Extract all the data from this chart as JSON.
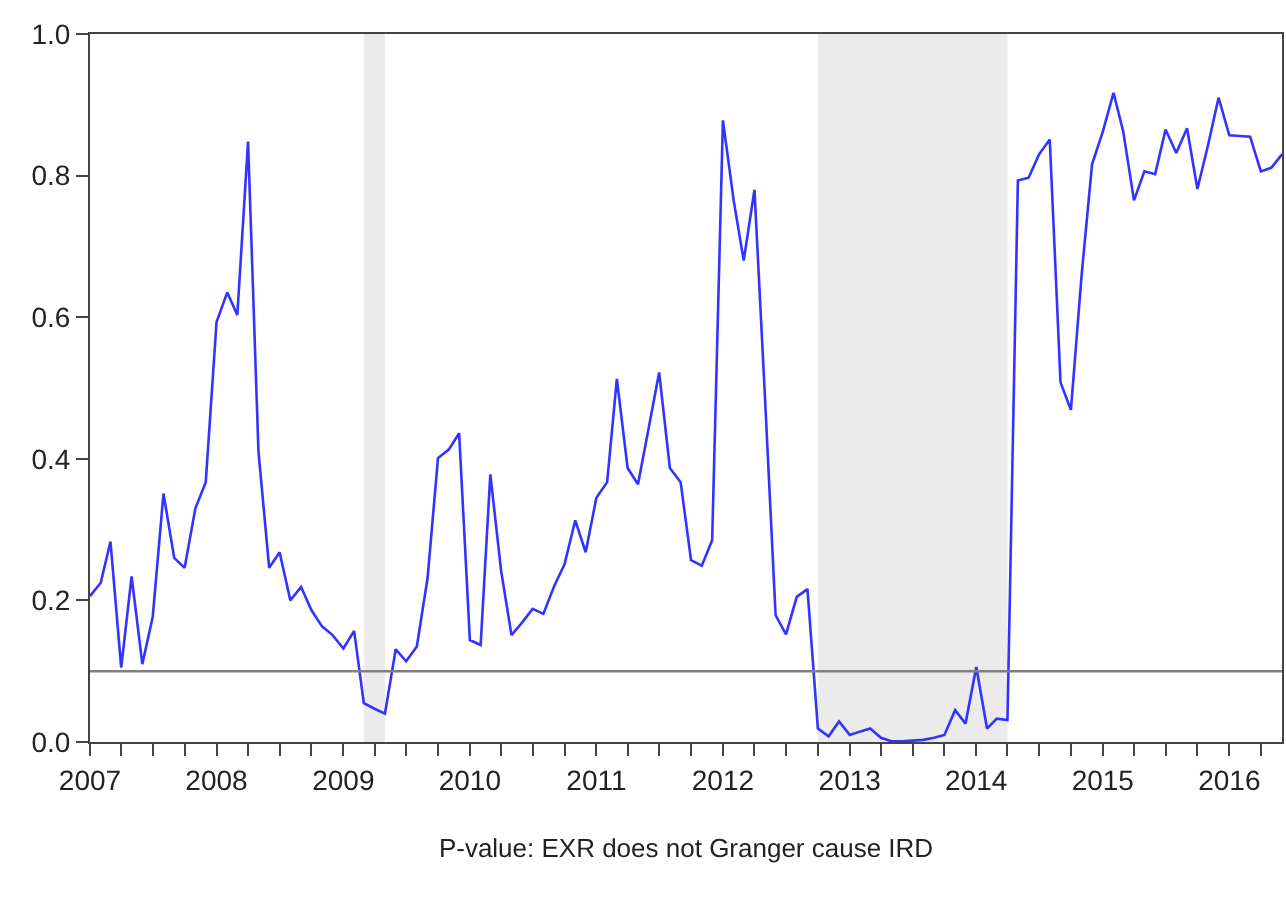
{
  "chart_data": {
    "type": "line",
    "xlabel": "P-value: EXR does not Granger cause IRD",
    "x": [
      "2007-01",
      "2007-02",
      "2007-03",
      "2007-04",
      "2007-05",
      "2007-06",
      "2007-07",
      "2007-08",
      "2007-09",
      "2007-10",
      "2007-11",
      "2007-12",
      "2008-01",
      "2008-02",
      "2008-03",
      "2008-04",
      "2008-05",
      "2008-06",
      "2008-07",
      "2008-08",
      "2008-09",
      "2008-10",
      "2008-11",
      "2008-12",
      "2009-01",
      "2009-02",
      "2009-03",
      "2009-04",
      "2009-05",
      "2009-06",
      "2009-07",
      "2009-08",
      "2009-09",
      "2009-10",
      "2009-11",
      "2009-12",
      "2010-01",
      "2010-02",
      "2010-03",
      "2010-04",
      "2010-05",
      "2010-06",
      "2010-07",
      "2010-08",
      "2010-09",
      "2010-10",
      "2010-11",
      "2010-12",
      "2011-01",
      "2011-02",
      "2011-03",
      "2011-04",
      "2011-05",
      "2011-06",
      "2011-07",
      "2011-08",
      "2011-09",
      "2011-10",
      "2011-11",
      "2011-12",
      "2012-01",
      "2012-02",
      "2012-03",
      "2012-04",
      "2012-05",
      "2012-06",
      "2012-07",
      "2012-08",
      "2012-09",
      "2012-10",
      "2012-11",
      "2012-12",
      "2013-01",
      "2013-02",
      "2013-03",
      "2013-04",
      "2013-05",
      "2013-06",
      "2013-07",
      "2013-08",
      "2013-09",
      "2013-10",
      "2013-11",
      "2013-12",
      "2014-01",
      "2014-02",
      "2014-03",
      "2014-04",
      "2014-05",
      "2014-06",
      "2014-07",
      "2014-08",
      "2014-09",
      "2014-10",
      "2014-11",
      "2014-12",
      "2015-01",
      "2015-02",
      "2015-03",
      "2015-04",
      "2015-05",
      "2015-06",
      "2015-07",
      "2015-08",
      "2015-09",
      "2015-10",
      "2015-11",
      "2015-12",
      "2016-01",
      "2016-02",
      "2016-03",
      "2016-04",
      "2016-05",
      "2016-06"
    ],
    "series": [
      {
        "color": "#3333ff",
        "values": [
          0.206,
          0.225,
          0.283,
          0.105,
          0.234,
          0.11,
          0.177,
          0.351,
          0.26,
          0.246,
          0.33,
          0.367,
          0.593,
          0.635,
          0.603,
          0.848,
          0.41,
          0.246,
          0.268,
          0.2,
          0.219,
          0.186,
          0.163,
          0.151,
          0.132,
          0.157,
          0.055,
          0.047,
          0.04,
          0.131,
          0.114,
          0.135,
          0.232,
          0.401,
          0.413,
          0.436,
          0.144,
          0.137,
          0.378,
          0.242,
          0.151,
          0.169,
          0.188,
          0.181,
          0.22,
          0.251,
          0.313,
          0.268,
          0.345,
          0.367,
          0.513,
          0.387,
          0.364,
          0.444,
          0.522,
          0.387,
          0.367,
          0.257,
          0.249,
          0.285,
          0.878,
          0.765,
          0.68,
          0.78,
          0.49,
          0.179,
          0.152,
          0.205,
          0.216,
          0.019,
          0.008,
          0.029,
          0.01,
          0.015,
          0.019,
          0.006,
          0.001,
          0.001,
          0.002,
          0.003,
          0.006,
          0.01,
          0.045,
          0.026,
          0.106,
          0.019,
          0.033,
          0.031,
          0.793,
          0.797,
          0.83,
          0.851,
          0.508,
          0.469,
          0.66,
          0.816,
          0.862,
          0.917,
          0.862,
          0.765,
          0.806,
          0.802,
          0.865,
          0.832,
          0.867,
          0.781,
          0.844,
          0.91,
          0.857,
          0.856,
          0.855,
          0.806,
          0.811,
          0.83
        ]
      }
    ],
    "xlim": [
      "2007-01",
      "2016-06"
    ],
    "xticks": [
      "2007",
      {
        "value": "2007-04",
        "label": null
      },
      {
        "value": "2007-07",
        "label": null
      },
      {
        "value": "2007-10",
        "label": null
      },
      "2008",
      {
        "value": "2008-04",
        "label": null
      },
      {
        "value": "2008-07",
        "label": null
      },
      {
        "value": "2008-10",
        "label": null
      },
      "2009",
      {
        "value": "2009-04",
        "label": null
      },
      {
        "value": "2009-07",
        "label": null
      },
      {
        "value": "2009-10",
        "label": null
      },
      "2010",
      {
        "value": "2010-04",
        "label": null
      },
      {
        "value": "2010-07",
        "label": null
      },
      {
        "value": "2010-10",
        "label": null
      },
      "2011",
      {
        "value": "2011-04",
        "label": null
      },
      {
        "value": "2011-07",
        "label": null
      },
      {
        "value": "2011-10",
        "label": null
      },
      "2012",
      {
        "value": "2012-04",
        "label": null
      },
      {
        "value": "2012-07",
        "label": null
      },
      {
        "value": "2012-10",
        "label": null
      },
      "2013",
      {
        "value": "2013-04",
        "label": null
      },
      {
        "value": "2013-07",
        "label": null
      },
      {
        "value": "2013-10",
        "label": null
      },
      "2014",
      {
        "value": "2014-04",
        "label": null
      },
      {
        "value": "2014-07",
        "label": null
      },
      {
        "value": "2014-10",
        "label": null
      },
      "2015",
      {
        "value": "2015-04",
        "label": null
      },
      {
        "value": "2015-07",
        "label": null
      },
      {
        "value": "2015-10",
        "label": null
      },
      "2016",
      {
        "value": "2016-04",
        "label": null
      }
    ],
    "ylim": [
      0,
      1
    ],
    "yticks": [
      {
        "value": 0,
        "label": "0.0"
      },
      0.2,
      0.4,
      0.6,
      0.8,
      {
        "value": 1,
        "label": "1.0"
      }
    ],
    "ref_lines": [
      {
        "axis": "y",
        "value": 0.1,
        "color": "#808080"
      }
    ],
    "bands": [
      {
        "axis": "x",
        "from": "2009-03",
        "to": "2009-05",
        "color": "#ebebeb"
      },
      {
        "axis": "x",
        "from": "2012-10",
        "to": "2014-04",
        "color": "#ebebeb"
      }
    ],
    "grid": false,
    "legend": false,
    "marker": "none",
    "line_style": "solid"
  }
}
